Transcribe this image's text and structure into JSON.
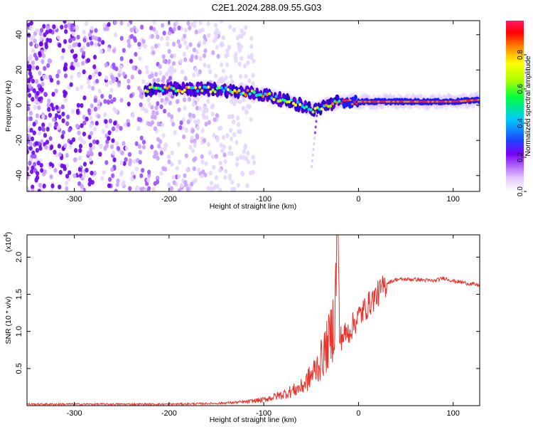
{
  "title": "C2E1.2024.288.09.55.G03",
  "chart_data": [
    {
      "type": "heatmap",
      "xlabel": "Height of straight line (km)",
      "ylabel": "Frequency (Hz)",
      "xlim": [
        -350,
        128
      ],
      "ylim": [
        -49,
        48
      ],
      "xticks": [
        "-300",
        "-200",
        "-100",
        "0",
        "100"
      ],
      "yticks": [
        "-40",
        "-20",
        "0",
        "20",
        "40"
      ],
      "colorbar": {
        "label": "Normalized spectral amplitude",
        "range": [
          0.0,
          1.0
        ],
        "ticks": [
          "0.0",
          "0.2",
          "0.4",
          "0.6",
          "0.8"
        ]
      },
      "ridge": {
        "description_points_x": [
          -225,
          -200,
          -150,
          -100,
          -80,
          -60,
          -45,
          -35,
          -20,
          0,
          50,
          100,
          128
        ],
        "frequency": [
          9,
          9,
          9,
          6,
          3,
          0,
          -3,
          0,
          2,
          2,
          2,
          2,
          3
        ]
      },
      "noise_region_x": [
        -350,
        -150
      ],
      "grid": false
    },
    {
      "type": "line",
      "xlabel": "Height of straight line (km)",
      "ylabel": "SNR (10 * v/v)",
      "yscale_label": "(x10",
      "yscale_exp": "4",
      "xlim": [
        -350,
        128
      ],
      "ylim": [
        0,
        2.3
      ],
      "xticks": [
        "-300",
        "-200",
        "-100",
        "0",
        "100"
      ],
      "yticks": [
        "0.5",
        "1.0",
        "1.5",
        "2.0"
      ],
      "series": [
        {
          "color": "#e8322a",
          "x": [
            -350,
            -200,
            -150,
            -120,
            -100,
            -80,
            -60,
            -50,
            -40,
            -30,
            -25,
            -22,
            -20,
            -10,
            0,
            10,
            20,
            30,
            40,
            60,
            80,
            90,
            100,
            128
          ],
          "y": [
            0.02,
            0.02,
            0.03,
            0.05,
            0.08,
            0.15,
            0.25,
            0.4,
            0.6,
            0.9,
            1.2,
            2.3,
            0.9,
            1.0,
            1.2,
            1.35,
            1.5,
            1.65,
            1.7,
            1.7,
            1.68,
            1.72,
            1.68,
            1.62
          ]
        }
      ],
      "grid": false
    }
  ]
}
